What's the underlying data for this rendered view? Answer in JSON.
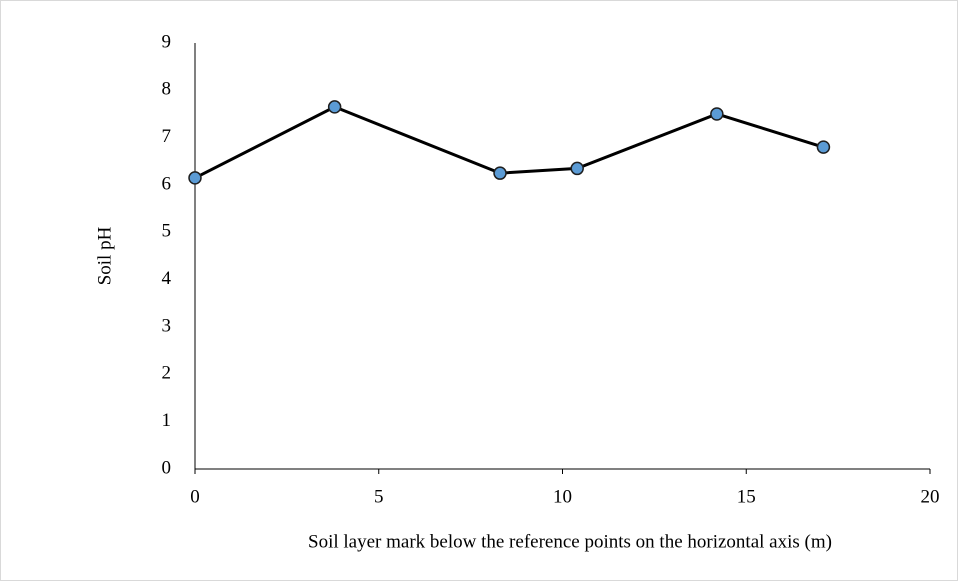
{
  "chart_data": {
    "type": "line",
    "x_label": "Soil layer mark below the reference points on the horizontal axis (m)",
    "y_label": "Soil pH",
    "x": [
      0,
      3.8,
      8.3,
      10.4,
      14.2,
      17.1
    ],
    "values": [
      6.15,
      7.65,
      6.25,
      6.35,
      7.5,
      6.8
    ],
    "color": "#5b9bd5",
    "line_color": "#000000",
    "xlim": [
      0,
      20
    ],
    "xticks": [
      0,
      5,
      10,
      15,
      20
    ],
    "ylim": [
      0,
      9
    ],
    "yticks": [
      0,
      1,
      2,
      3,
      4,
      5,
      6,
      7,
      8,
      9
    ],
    "grid": false
  }
}
